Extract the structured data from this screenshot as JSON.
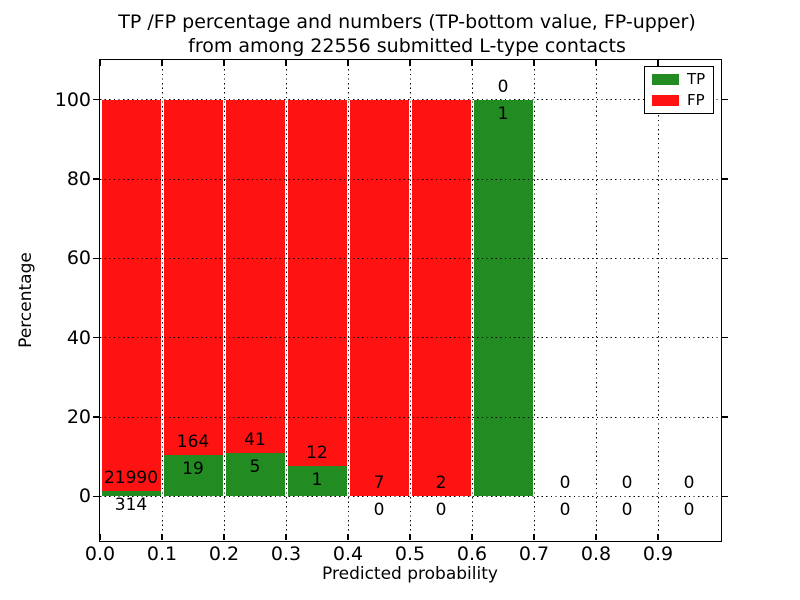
{
  "chart_data": {
    "type": "bar",
    "stacked": true,
    "title_line1": "TP /FP percentage and numbers (TP-bottom value, FP-upper)",
    "title_line2": "from among 22556 submitted L-type contacts",
    "title": "TP /FP percentage and numbers (TP-bottom value, FP-upper) from among 22556 submitted L-type contacts",
    "total_submitted_contacts": 22556,
    "xlabel": "Predicted probability",
    "ylabel": "Percentage",
    "xlim": [
      0.0,
      1.0
    ],
    "ylim": [
      -11,
      110
    ],
    "x_tick_values": [
      0.0,
      0.1,
      0.2,
      0.3,
      0.4,
      0.5,
      0.6,
      0.7,
      0.8,
      0.9
    ],
    "x_tick_labels": [
      "0.0",
      "0.1",
      "0.2",
      "0.3",
      "0.4",
      "0.5",
      "0.6",
      "0.7",
      "0.8",
      "0.9"
    ],
    "y_tick_values": [
      0,
      20,
      40,
      60,
      80,
      100
    ],
    "y_tick_labels": [
      "0",
      "20",
      "40",
      "60",
      "80",
      "100"
    ],
    "grid": "dotted, drawn above bars",
    "legend_position": "upper right",
    "legend": [
      {
        "label": "TP",
        "color": "#228B22"
      },
      {
        "label": "FP",
        "color": "#FF1212"
      }
    ],
    "annotation_note": "TP count below boundary, FP count above boundary",
    "bins": [
      {
        "x_start": 0.0,
        "x_end": 0.1,
        "tp_count": 314,
        "fp_count": 21990,
        "tp_pct": 1.41,
        "fp_pct": 98.59
      },
      {
        "x_start": 0.1,
        "x_end": 0.2,
        "tp_count": 19,
        "fp_count": 164,
        "tp_pct": 10.38,
        "fp_pct": 89.62
      },
      {
        "x_start": 0.2,
        "x_end": 0.3,
        "tp_count": 5,
        "fp_count": 41,
        "tp_pct": 10.87,
        "fp_pct": 89.13
      },
      {
        "x_start": 0.3,
        "x_end": 0.4,
        "tp_count": 1,
        "fp_count": 12,
        "tp_pct": 7.69,
        "fp_pct": 92.31
      },
      {
        "x_start": 0.4,
        "x_end": 0.5,
        "tp_count": 0,
        "fp_count": 7,
        "tp_pct": 0,
        "fp_pct": 100
      },
      {
        "x_start": 0.5,
        "x_end": 0.6,
        "tp_count": 0,
        "fp_count": 2,
        "tp_pct": 0,
        "fp_pct": 100
      },
      {
        "x_start": 0.6,
        "x_end": 0.7,
        "tp_count": 1,
        "fp_count": 0,
        "tp_pct": 100,
        "fp_pct": 0
      },
      {
        "x_start": 0.7,
        "x_end": 0.8,
        "tp_count": 0,
        "fp_count": 0,
        "tp_pct": 0,
        "fp_pct": 0
      },
      {
        "x_start": 0.8,
        "x_end": 0.9,
        "tp_count": 0,
        "fp_count": 0,
        "tp_pct": 0,
        "fp_pct": 0
      },
      {
        "x_start": 0.9,
        "x_end": 1.0,
        "tp_count": 0,
        "fp_count": 0,
        "tp_pct": 0,
        "fp_pct": 0
      }
    ],
    "colors": {
      "tp": "#228B22",
      "fp": "#FF1212",
      "grid": "#000000",
      "spine": "#000000",
      "text": "#000000",
      "background": "#ffffff"
    }
  }
}
